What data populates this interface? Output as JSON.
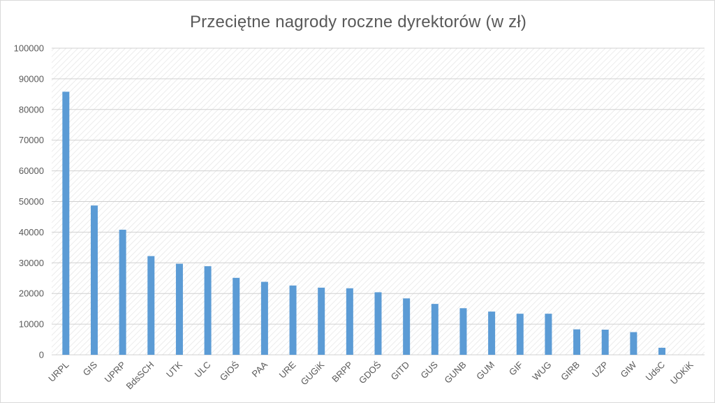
{
  "chart_data": {
    "type": "bar",
    "title": "Przeciętne nagrody roczne dyrektorów (w zł)",
    "xlabel": "",
    "ylabel": "",
    "ylim": [
      0,
      100000
    ],
    "yticks": [
      0,
      10000,
      20000,
      30000,
      40000,
      50000,
      60000,
      70000,
      80000,
      90000,
      100000
    ],
    "grid": true,
    "legend": "none",
    "bar_color": "#5b9bd5",
    "categories": [
      "URPL",
      "GIS",
      "UPRP",
      "BdsSCH",
      "UTK",
      "ULC",
      "GIOŚ",
      "PAA",
      "URE",
      "GUGiK",
      "BRPP",
      "GDOŚ",
      "GITD",
      "GUS",
      "GUNB",
      "GUM",
      "GIF",
      "WUG",
      "GIRB",
      "UZP",
      "GIW",
      "UdsC",
      "UOKiK"
    ],
    "values": [
      85800,
      48700,
      40800,
      32200,
      29700,
      28900,
      25100,
      23800,
      22600,
      21900,
      21700,
      20400,
      18400,
      16600,
      15200,
      14100,
      13400,
      13400,
      8300,
      8200,
      7400,
      2300,
      0
    ]
  }
}
